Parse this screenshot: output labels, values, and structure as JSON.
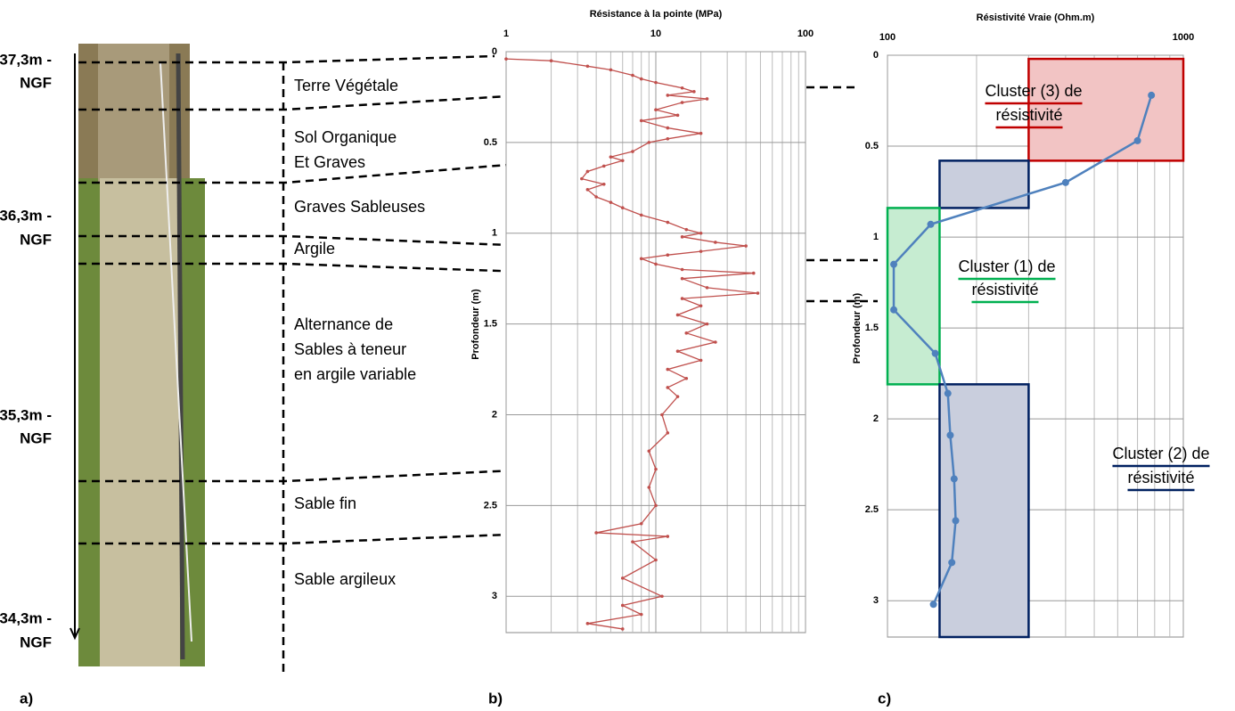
{
  "log": {
    "depth_labels": [
      [
        "37,3m -",
        "NGF"
      ],
      [
        "36,3m -",
        "NGF"
      ],
      [
        "35,3m -",
        "NGF"
      ],
      [
        "34,3m -",
        "NGF"
      ]
    ],
    "layers": [
      [
        "Terre Végétale"
      ],
      [
        "Sol Organique",
        "Et Graves"
      ],
      [
        "Graves Sableuses"
      ],
      [
        "Argile"
      ],
      [
        "Alternance de",
        "Sables à teneur",
        "en argile variable"
      ],
      [
        "Sable fin"
      ],
      [
        "Sable argileux"
      ]
    ],
    "panel_labels": [
      "a)",
      "b)",
      "c)"
    ]
  },
  "chart_data": [
    {
      "type": "line",
      "title": "Résistance à la pointe (MPa)",
      "y_label": "Profondeur (m)",
      "xscale": "log",
      "xlim": [
        1,
        100
      ],
      "xticks": [
        1,
        10,
        100
      ],
      "ylim": [
        0,
        3.2
      ],
      "yticks": [
        0,
        0.5,
        1,
        1.5,
        2,
        2.5,
        3
      ],
      "grid": true,
      "series": [
        {
          "color": "#c0504d",
          "depth": [
            0.04,
            0.05,
            0.08,
            0.1,
            0.13,
            0.15,
            0.17,
            0.2,
            0.22,
            0.24,
            0.26,
            0.28,
            0.32,
            0.35,
            0.38,
            0.42,
            0.45,
            0.48,
            0.5,
            0.55,
            0.58,
            0.6,
            0.63,
            0.66,
            0.7,
            0.73,
            0.76,
            0.8,
            0.83,
            0.86,
            0.9,
            0.94,
            0.98,
            1.0,
            1.02,
            1.05,
            1.07,
            1.1,
            1.12,
            1.14,
            1.17,
            1.2,
            1.22,
            1.25,
            1.3,
            1.33,
            1.36,
            1.4,
            1.45,
            1.5,
            1.55,
            1.6,
            1.65,
            1.7,
            1.75,
            1.8,
            1.85,
            1.9,
            2.0,
            2.1,
            2.2,
            2.3,
            2.4,
            2.5,
            2.6,
            2.65,
            2.67,
            2.7,
            2.8,
            2.9,
            3.0,
            3.05,
            3.1,
            3.15,
            3.18
          ],
          "values": [
            1,
            2,
            3.5,
            5,
            7,
            8,
            10,
            15,
            18,
            12,
            22,
            15,
            10,
            14,
            8,
            12,
            20,
            12,
            9,
            7,
            5,
            6,
            4.5,
            3.5,
            3.2,
            4.5,
            3.5,
            4,
            5,
            6,
            8,
            12,
            16,
            20,
            15,
            25,
            40,
            20,
            12,
            8,
            10,
            15,
            45,
            15,
            22,
            48,
            15,
            20,
            14,
            22,
            16,
            25,
            14,
            20,
            12,
            16,
            12,
            14,
            11,
            12,
            9,
            10,
            9,
            10,
            8,
            4,
            12,
            7,
            10,
            6,
            11,
            6,
            8,
            3.5,
            6
          ]
        }
      ]
    },
    {
      "type": "line",
      "title": "Résistivité Vraie (Ohm.m)",
      "y_label": "Profondeur (m)",
      "xscale": "log",
      "xlim": [
        100,
        1000
      ],
      "xticks": [
        100,
        1000
      ],
      "ylim": [
        0,
        3.2
      ],
      "yticks": [
        0,
        0.5,
        1,
        1.5,
        2,
        2.5,
        3
      ],
      "grid": true,
      "regions": [
        {
          "xlim": [
            300,
            1000
          ],
          "ylim": [
            0.02,
            0.58
          ],
          "color": "#c00000",
          "fill": "#f2c4c4"
        },
        {
          "xlim": [
            150,
            300
          ],
          "ylim": [
            0.58,
            0.84
          ],
          "color": "#002060",
          "fill": "#c9cedd"
        },
        {
          "xlim": [
            100,
            150
          ],
          "ylim": [
            0.84,
            1.81
          ],
          "color": "#00b050",
          "fill": "#c6ecd1"
        },
        {
          "xlim": [
            150,
            300
          ],
          "ylim": [
            1.81,
            3.2
          ],
          "color": "#002060",
          "fill": "#c9cedd"
        }
      ],
      "annotations": [
        {
          "lines": [
            "Cluster (3) de",
            "résistivité"
          ],
          "color": "#c00000"
        },
        {
          "lines": [
            "Cluster (1) de",
            "résistivité"
          ],
          "color": "#00b050"
        },
        {
          "lines": [
            "Cluster (2) de",
            "résistivité"
          ],
          "color": "#002060"
        }
      ],
      "series": [
        {
          "color": "#4f81bd",
          "depth": [
            0.22,
            0.47,
            0.7,
            0.93,
            1.15,
            1.4,
            1.64,
            1.86,
            2.09,
            2.33,
            2.56,
            2.79,
            3.02
          ],
          "values": [
            780,
            700,
            400,
            140,
            105,
            105,
            145,
            160,
            163,
            168,
            170,
            165,
            143
          ]
        }
      ]
    }
  ]
}
